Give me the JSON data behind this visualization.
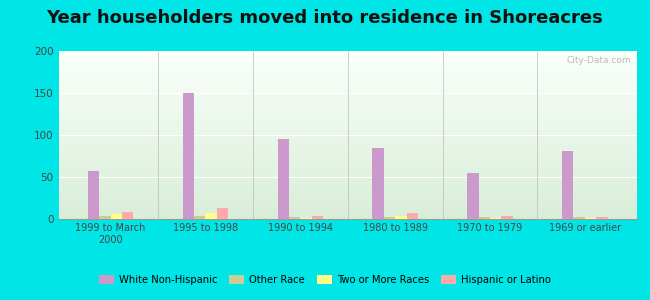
{
  "title": "Year householders moved into residence in Shoreacres",
  "categories": [
    "1999 to March\n2000",
    "1995 to 1998",
    "1990 to 1994",
    "1980 to 1989",
    "1970 to 1979",
    "1969 or earlier"
  ],
  "series": {
    "White Non-Hispanic": [
      57,
      150,
      95,
      85,
      55,
      81
    ],
    "Other Race": [
      3,
      4,
      2,
      2,
      2,
      2
    ],
    "Two or More Races": [
      6,
      7,
      1,
      3,
      1,
      1
    ],
    "Hispanic or Latino": [
      8,
      13,
      3,
      7,
      3,
      2
    ]
  },
  "colors": {
    "White Non-Hispanic": "#cc99cc",
    "Other Race": "#cccc99",
    "Two or More Races": "#ffff88",
    "Hispanic or Latino": "#ffaaaa"
  },
  "bar_width": 0.12,
  "ylim": [
    0,
    200
  ],
  "yticks": [
    0,
    50,
    100,
    150,
    200
  ],
  "outer_background": "#00e5e5",
  "title_fontsize": 13,
  "watermark": "City-Data.com"
}
